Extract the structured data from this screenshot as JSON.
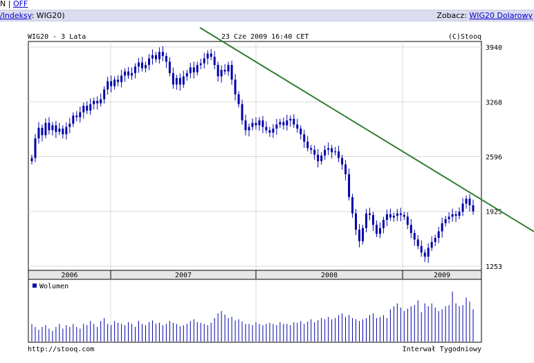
{
  "topbar": {
    "prefix": "N |",
    "off_link": "OFF"
  },
  "navbar": {
    "left_link": "/Indeksy",
    "left_text": ": WIG20)",
    "right_label": "Zobacz:",
    "right_link": "WIG20 Dolarowy"
  },
  "header": {
    "title": "WIG20 - 3 Lata",
    "datetime": "23 Cze 2009 16:40 CET",
    "copyright": "(C)Stooq"
  },
  "footer": {
    "url": "http://stooq.com",
    "interval": "Interwał Tygodniowy"
  },
  "colors": {
    "candle": "#0000aa",
    "trend": "#2e7d2e",
    "grid": "#d8d8d8",
    "navbar": "#dcdcf0",
    "axis_band": "#e6e6e6"
  },
  "chart_data": [
    {
      "type": "line",
      "title": "WIG20 - 3 Lata",
      "ylim": [
        1253,
        3940
      ],
      "yticks": [
        3940,
        3268,
        2596,
        1925,
        1253
      ],
      "xticks": [
        "2006",
        "2007",
        "2008",
        "2009"
      ],
      "grid": true,
      "series": [
        {
          "values": [
            2580,
            2820,
            2950,
            2860,
            3010,
            2920,
            2980,
            2900,
            2940,
            2870,
            2960,
            3000,
            3100,
            3080,
            3140,
            3220,
            3160,
            3240,
            3280,
            3250,
            3300,
            3420,
            3520,
            3460,
            3540,
            3510,
            3590,
            3640,
            3590,
            3620,
            3700,
            3750,
            3680,
            3720,
            3800,
            3840,
            3790,
            3880,
            3830,
            3760,
            3620,
            3480,
            3560,
            3480,
            3580,
            3620,
            3690,
            3630,
            3720,
            3740,
            3800,
            3860,
            3820,
            3720,
            3580,
            3660,
            3640,
            3720,
            3540,
            3360,
            3240,
            3040,
            2920,
            2960,
            3010,
            2980,
            3040,
            2960,
            2920,
            2890,
            2940,
            2990,
            3020,
            2980,
            3040,
            3060,
            2990,
            2940,
            2870,
            2780,
            2700,
            2680,
            2620,
            2540,
            2610,
            2680,
            2700,
            2650,
            2660,
            2580,
            2500,
            2380,
            2100,
            1900,
            1700,
            1560,
            1720,
            1900,
            1880,
            1760,
            1650,
            1720,
            1820,
            1890,
            1850,
            1870,
            1900,
            1880,
            1860,
            1760,
            1660,
            1580,
            1500,
            1420,
            1370,
            1480,
            1550,
            1600,
            1680,
            1780,
            1830,
            1860,
            1890,
            1870,
            1920,
            2020,
            2080,
            2000,
            1925
          ]
        },
        {
          "name": "Wolumen",
          "values": [
            30,
            25,
            20,
            25,
            28,
            22,
            18,
            25,
            30,
            22,
            28,
            25,
            30,
            25,
            22,
            30,
            28,
            35,
            30,
            25,
            35,
            40,
            30,
            28,
            35,
            32,
            30,
            28,
            33,
            30,
            25,
            35,
            30,
            28,
            33,
            36,
            30,
            32,
            28,
            30,
            35,
            32,
            30,
            26,
            28,
            30,
            35,
            38,
            33,
            32,
            30,
            28,
            32,
            40,
            48,
            52,
            46,
            40,
            42,
            36,
            38,
            34,
            30,
            30,
            28,
            33,
            30,
            28,
            30,
            32,
            30,
            28,
            33,
            30,
            30,
            28,
            33,
            32,
            35,
            30,
            34,
            38,
            33,
            36,
            40,
            38,
            42,
            38,
            40,
            45,
            48,
            42,
            45,
            40,
            38,
            35,
            38,
            40,
            45,
            48,
            40,
            42,
            45,
            40,
            55,
            60,
            65,
            58,
            52,
            56,
            60,
            62,
            70,
            50,
            65,
            60,
            65,
            58,
            52,
            55,
            60,
            62,
            85,
            65,
            60,
            62,
            75,
            68,
            55
          ]
        }
      ],
      "annotations": [
        "trend line"
      ]
    }
  ]
}
